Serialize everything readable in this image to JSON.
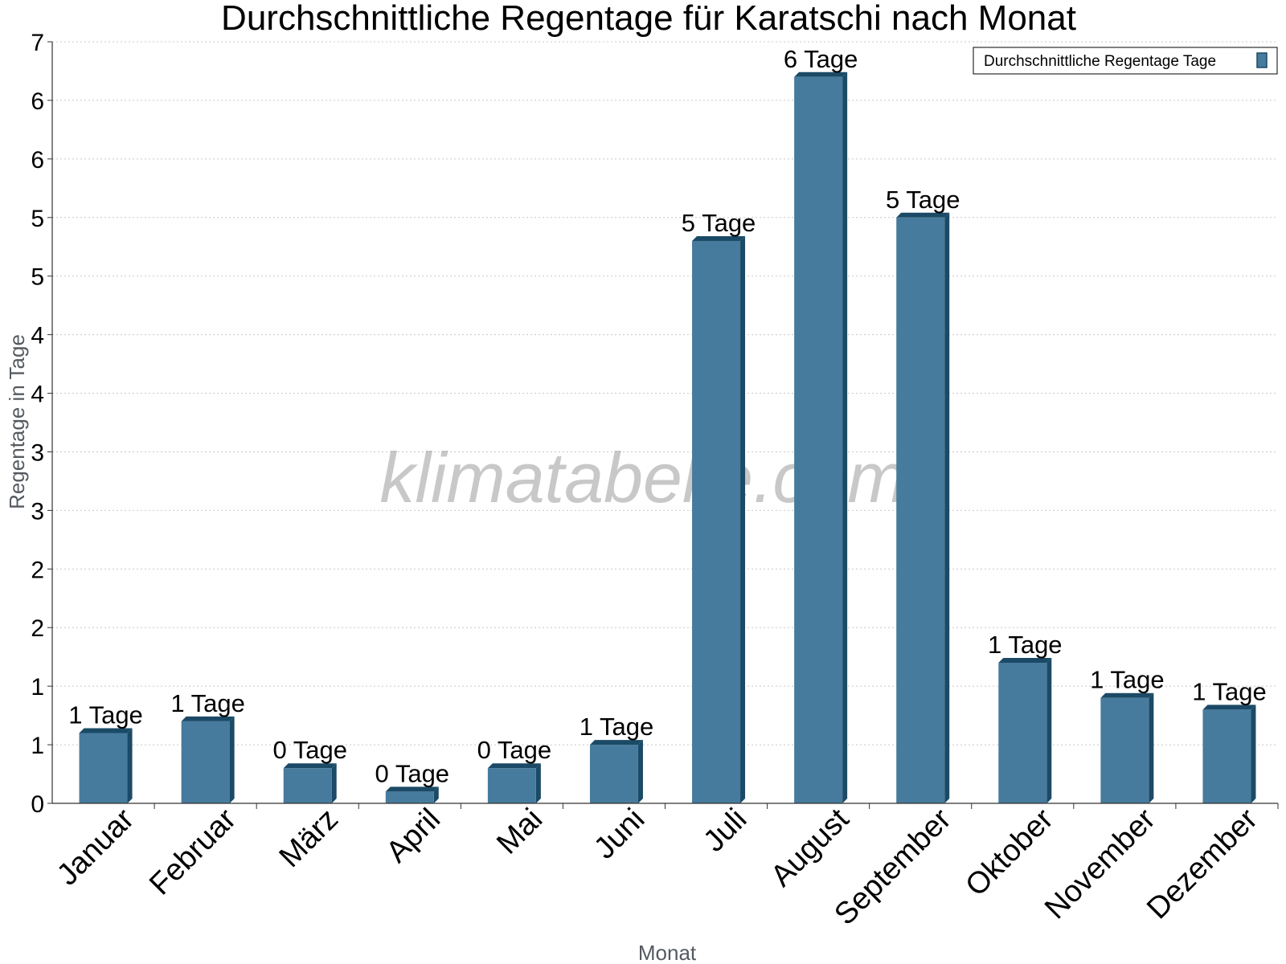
{
  "chart_data": {
    "type": "bar",
    "title": "Durchschnittliche Regentage für Karatschi nach Monat",
    "xlabel": "Monat",
    "ylabel": "Regentage in Tage",
    "categories": [
      "Januar",
      "Februar",
      "März",
      "April",
      "Mai",
      "Juni",
      "Juli",
      "August",
      "September",
      "Oktober",
      "November",
      "Dezember"
    ],
    "series": [
      {
        "name": "Durchschnittliche Regentage Tage",
        "values": [
          0.6,
          0.7,
          0.3,
          0.1,
          0.3,
          0.5,
          4.8,
          6.2,
          5.0,
          1.2,
          0.9,
          0.8
        ],
        "data_labels": [
          "1 Tage",
          "1 Tage",
          "0 Tage",
          "0 Tage",
          "0 Tage",
          "1 Tage",
          "5 Tage",
          "6 Tage",
          "5 Tage",
          "1 Tage",
          "1 Tage",
          "1 Tage"
        ],
        "color": "#467b9d",
        "side_color": "#1b4a66"
      }
    ],
    "ylim": [
      0,
      6.5
    ],
    "ytick_values": [
      0,
      0.5,
      1,
      1.5,
      2,
      2.5,
      3,
      3.5,
      4,
      4.5,
      5,
      5.5,
      6,
      6.5
    ],
    "ytick_labels": [
      "0",
      "1",
      "1",
      "2",
      "2",
      "3",
      "3",
      "4",
      "4",
      "5",
      "5",
      "6",
      "6",
      "7"
    ],
    "grid": true,
    "legend_position": "top-right"
  },
  "watermark": "klimatabelle.com"
}
